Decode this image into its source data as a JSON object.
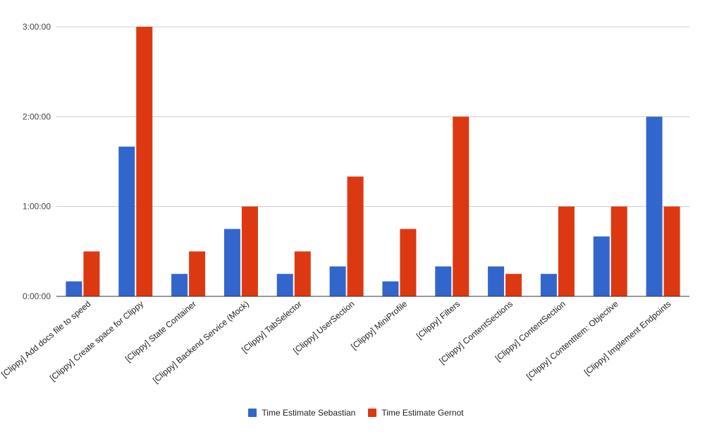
{
  "chart_data": {
    "type": "bar",
    "title": "",
    "xlabel": "",
    "ylabel": "",
    "ylim": [
      0,
      3
    ],
    "yunit": "hours",
    "yticks": [
      {
        "value": 0,
        "label": "0:00:00"
      },
      {
        "value": 1,
        "label": "1:00:00"
      },
      {
        "value": 2,
        "label": "2:00:00"
      },
      {
        "value": 3,
        "label": "3:00:00"
      }
    ],
    "grid": true,
    "legend_position": "bottom",
    "categories": [
      "[Clippy] Add docs file to speed",
      "[Clippy] Create space for Clippy",
      "[Clippy] State Container",
      "[Clippy] Backend Service (Mock)",
      "[Clippy] TabSelector",
      "[Clippy] UserSection",
      "[Clippy] MiniProfile",
      "[Clippy] Filters",
      "[Clippy] ContentSections",
      "[Clippy] ContentSection",
      "[Clippy] ContentItem: Objective",
      "[Clippy] Implement Endpoints"
    ],
    "series": [
      {
        "name": "Time Estimate Sebastian",
        "color": "#3366cc",
        "values": [
          0.1667,
          1.6667,
          0.25,
          0.75,
          0.25,
          0.3333,
          0.1667,
          0.3333,
          0.3333,
          0.25,
          0.6667,
          2.0
        ]
      },
      {
        "name": "Time Estimate Gernot",
        "color": "#dc3912",
        "values": [
          0.5,
          3.0,
          0.5,
          1.0,
          0.5,
          1.3333,
          0.75,
          2.0,
          0.25,
          1.0,
          1.0,
          1.0
        ]
      }
    ]
  }
}
